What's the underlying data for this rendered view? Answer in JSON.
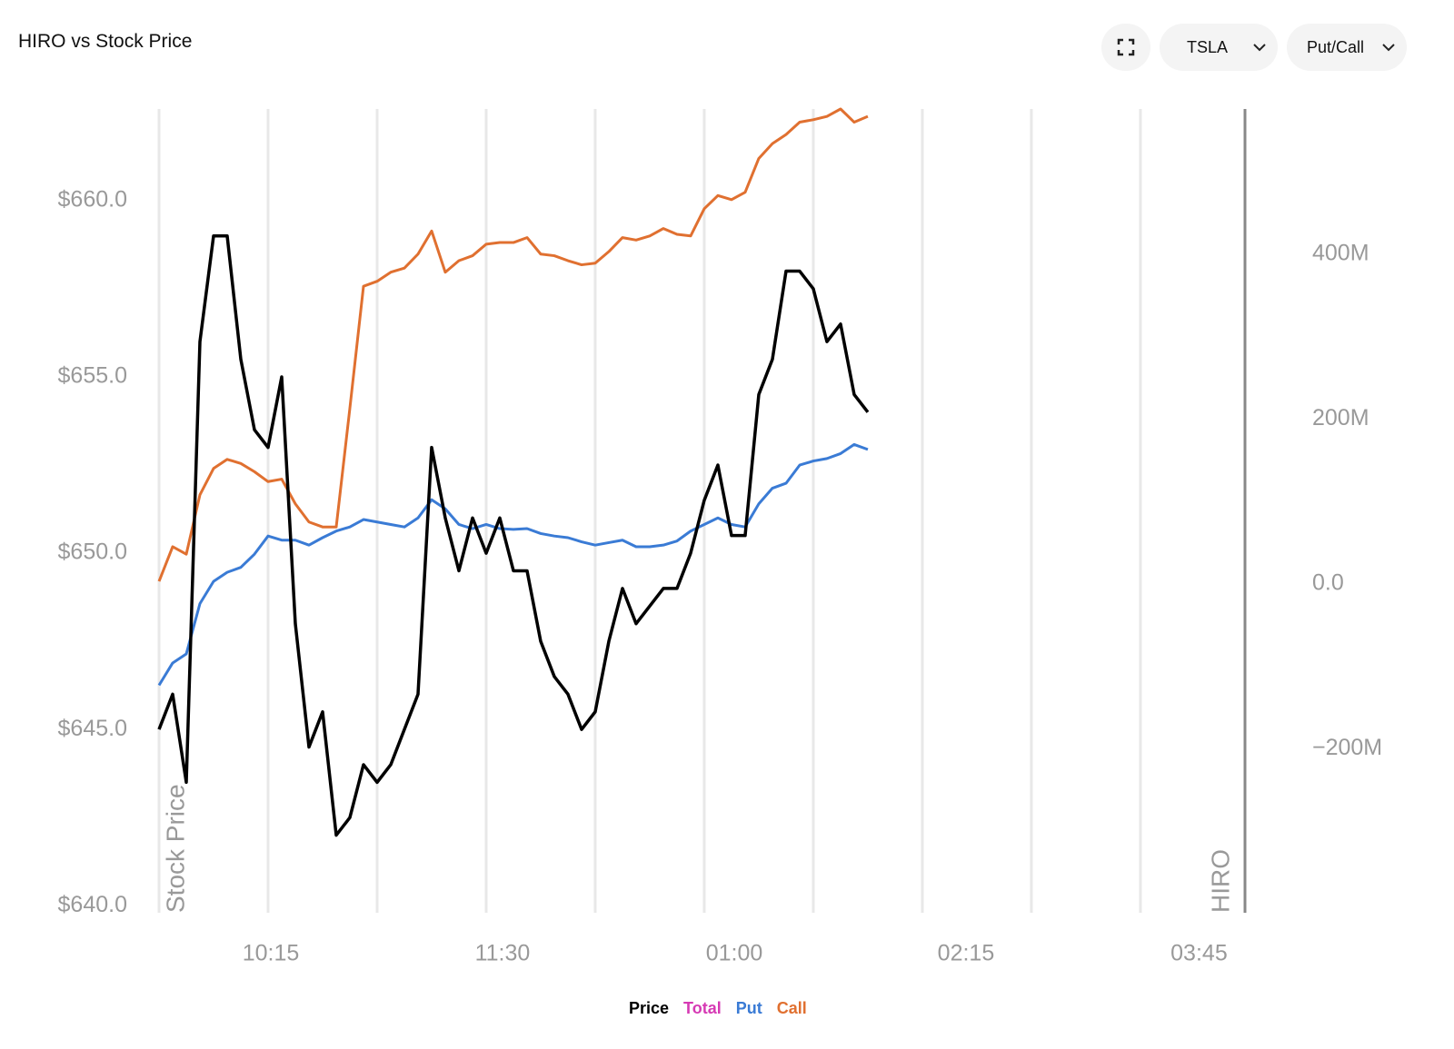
{
  "controls": {
    "symbol": "TSLA",
    "mode": "Put/Call"
  },
  "chart_data": {
    "type": "line",
    "title": "HIRO vs Stock Price",
    "y_label": "Stock Price",
    "y2_label": "HIRO",
    "x": [
      0,
      1,
      2,
      3,
      4,
      5,
      6,
      7,
      8,
      9,
      10,
      11,
      12,
      13,
      14,
      15,
      16,
      17,
      18,
      19,
      20,
      21,
      22,
      23,
      24,
      25,
      26,
      27,
      28,
      29,
      30,
      31,
      32,
      33,
      34,
      35,
      36,
      37,
      38,
      39,
      40,
      41,
      42,
      43,
      44,
      45,
      46,
      47,
      48,
      49,
      50,
      51,
      52
    ],
    "xlim": [
      0,
      79.67
    ],
    "xticks": [
      {
        "value": 8.2,
        "label": "10:15"
      },
      {
        "value": 25.2,
        "label": "11:30"
      },
      {
        "value": 42.2,
        "label": "01:00"
      },
      {
        "value": 59.2,
        "label": "02:15"
      },
      {
        "value": 76.3,
        "label": "03:45"
      }
    ],
    "xgrid": [
      0,
      8,
      16,
      24,
      32,
      40,
      48,
      56,
      64,
      72
    ],
    "ylim": [
      639.8,
      662.6
    ],
    "yticks": [
      {
        "value": 640,
        "label": "$640.0"
      },
      {
        "value": 645,
        "label": "$645.0"
      },
      {
        "value": 650,
        "label": "$650.0"
      },
      {
        "value": 655,
        "label": "$655.0"
      },
      {
        "value": 660,
        "label": "$660.0"
      }
    ],
    "y2lim": [
      -399,
      576
    ],
    "y2ticks": [
      {
        "value": -200,
        "label": "−200M"
      },
      {
        "value": 0,
        "label": "0.0"
      },
      {
        "value": 200,
        "label": "200M"
      },
      {
        "value": 400,
        "label": "400M"
      }
    ],
    "series": [
      {
        "name": "Price",
        "color": "#000000",
        "values": [
          645,
          646,
          643.5,
          656,
          659,
          659,
          655.5,
          653.5,
          653,
          655,
          648,
          644.5,
          645.5,
          642,
          642.5,
          644,
          643.5,
          644,
          645,
          646,
          653,
          651,
          649.5,
          651,
          650,
          651,
          649.5,
          649.5,
          647.5,
          646.5,
          646,
          645,
          645.5,
          647.5,
          649,
          648,
          648.5,
          649,
          649,
          650,
          651.5,
          652.5,
          650.5,
          650.5,
          654.5,
          655.5,
          658,
          658,
          657.5,
          656,
          656.5,
          654.5,
          654
        ]
      },
      {
        "name": "Total",
        "color": "#d63ab4",
        "axis": "y2",
        "values": [
          null,
          null,
          null,
          null,
          null,
          null,
          null,
          null,
          null,
          null,
          null,
          null,
          null,
          null,
          null,
          null,
          null,
          null,
          null,
          null,
          null,
          null,
          null,
          null,
          null,
          null,
          null,
          null,
          null,
          null,
          null,
          null,
          null,
          null,
          null,
          null,
          null,
          null,
          null,
          null,
          null,
          null,
          null,
          null,
          null,
          null,
          null,
          null,
          null,
          null,
          null,
          null,
          null
        ]
      },
      {
        "name": "Put",
        "color": "#3a7bd5",
        "axis": "y2",
        "values": [
          -123,
          -96,
          -85,
          -24,
          3,
          14,
          20,
          36,
          58,
          53,
          53,
          47,
          56,
          64,
          69,
          78,
          75,
          72,
          69,
          80,
          102,
          91,
          72,
          67,
          72,
          67,
          66,
          67,
          61,
          58,
          56,
          51,
          47,
          50,
          53,
          45,
          45,
          47,
          52,
          64,
          72,
          80,
          72,
          69,
          97,
          116,
          122,
          144,
          149,
          152,
          158,
          169,
          163
        ]
      },
      {
        "name": "Call",
        "color": "#e07030",
        "axis": "y2",
        "values": [
          3,
          45,
          36,
          108,
          140,
          151,
          146,
          136,
          124,
          127,
          97,
          75,
          69,
          69,
          213,
          361,
          367,
          378,
          383,
          400,
          428,
          378,
          392,
          398,
          412,
          414,
          414,
          420,
          400,
          398,
          392,
          387,
          389,
          403,
          420,
          417,
          422,
          431,
          424,
          422,
          455,
          471,
          466,
          475,
          516,
          534,
          545,
          560,
          563,
          567,
          576,
          560,
          567
        ]
      }
    ]
  }
}
